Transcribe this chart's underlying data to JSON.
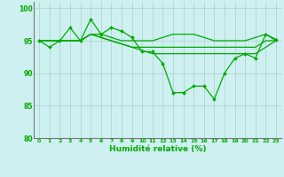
{
  "title": "",
  "xlabel": "Humidité relative (%)",
  "ylabel": "",
  "background_color": "#cef0f0",
  "grid_color": "#aacfcf",
  "line_color": "#00aa00",
  "marker_color": "#00aa00",
  "xlim": [
    -0.5,
    23.5
  ],
  "ylim": [
    80,
    101
  ],
  "yticks": [
    80,
    85,
    90,
    95,
    100
  ],
  "xtick_labels": [
    "0",
    "1",
    "2",
    "3",
    "4",
    "5",
    "6",
    "7",
    "8",
    "9",
    "10",
    "11",
    "12",
    "13",
    "14",
    "15",
    "16",
    "17",
    "18",
    "19",
    "20",
    "21",
    "22",
    "23"
  ],
  "series_plain": [
    [
      95,
      95,
      95,
      95,
      95,
      96,
      96,
      95.5,
      95,
      95,
      95,
      95,
      95.5,
      96,
      96,
      96,
      95.5,
      95,
      95,
      95,
      95,
      95.5,
      96,
      95
    ],
    [
      95,
      95,
      95,
      95,
      95,
      96,
      95.5,
      95,
      94.5,
      94,
      94,
      94,
      94,
      94,
      94,
      94,
      94,
      94,
      94,
      94,
      94,
      94,
      95,
      95
    ],
    [
      95,
      95,
      95,
      95,
      95,
      96,
      95.5,
      95,
      94.5,
      94,
      93.5,
      93,
      93,
      93,
      93,
      93,
      93,
      93,
      93,
      93,
      93,
      93,
      94,
      95
    ]
  ],
  "series_marked": [
    [
      95,
      94,
      95,
      97,
      95,
      98.3,
      96,
      97,
      96.5,
      95.5,
      93.3,
      93.3,
      91.5,
      87,
      87,
      88,
      88,
      86,
      90,
      92.3,
      93,
      92.3,
      96,
      95.2
    ]
  ]
}
